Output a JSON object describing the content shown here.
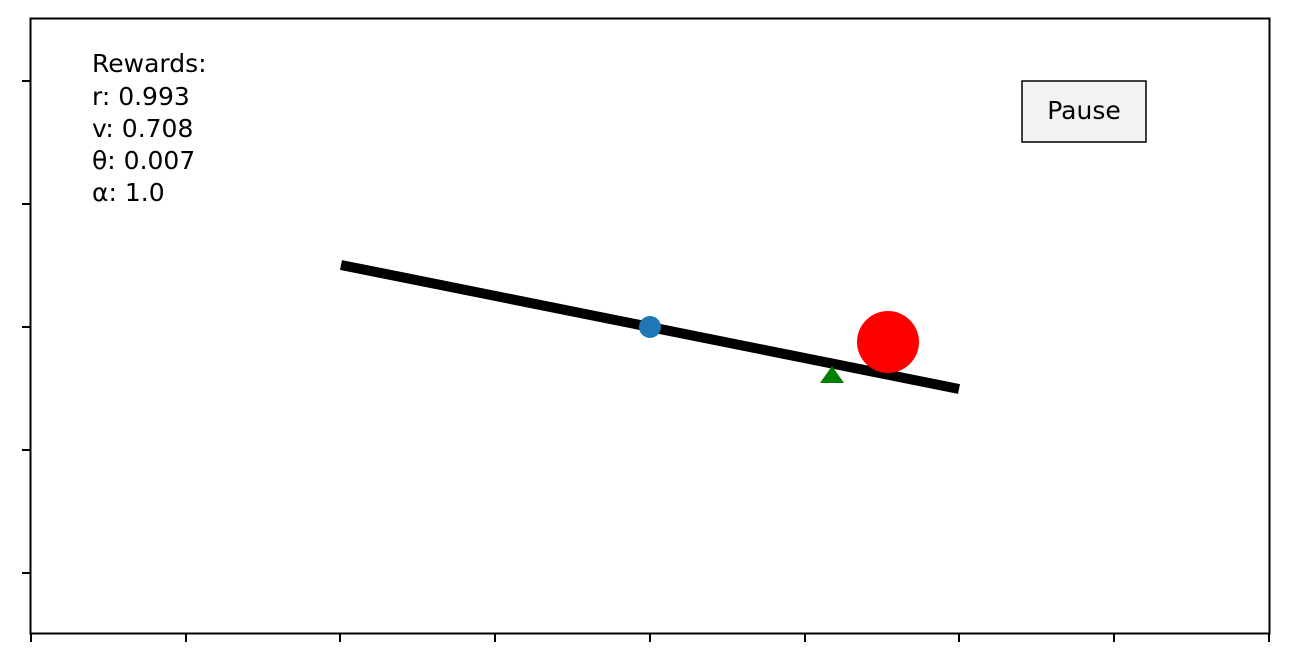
{
  "rewards": {
    "heading": "Rewards:",
    "lines": [
      {
        "key": "r",
        "label": "r: 0.993",
        "value": 0.993
      },
      {
        "key": "v",
        "label": "v: 0.708",
        "value": 0.708
      },
      {
        "key": "theta",
        "label": "θ: 0.007",
        "value": 0.007
      },
      {
        "key": "alpha",
        "label": "α: 1.0",
        "value": 1.0
      }
    ]
  },
  "controls": {
    "pause_label": "Pause"
  },
  "colors": {
    "beam": "#000000",
    "pivot": "#1f77b4",
    "ball": "#ff0000",
    "target": "#008000",
    "button_fill": "#f2f2f2",
    "axes": "#000000"
  }
}
